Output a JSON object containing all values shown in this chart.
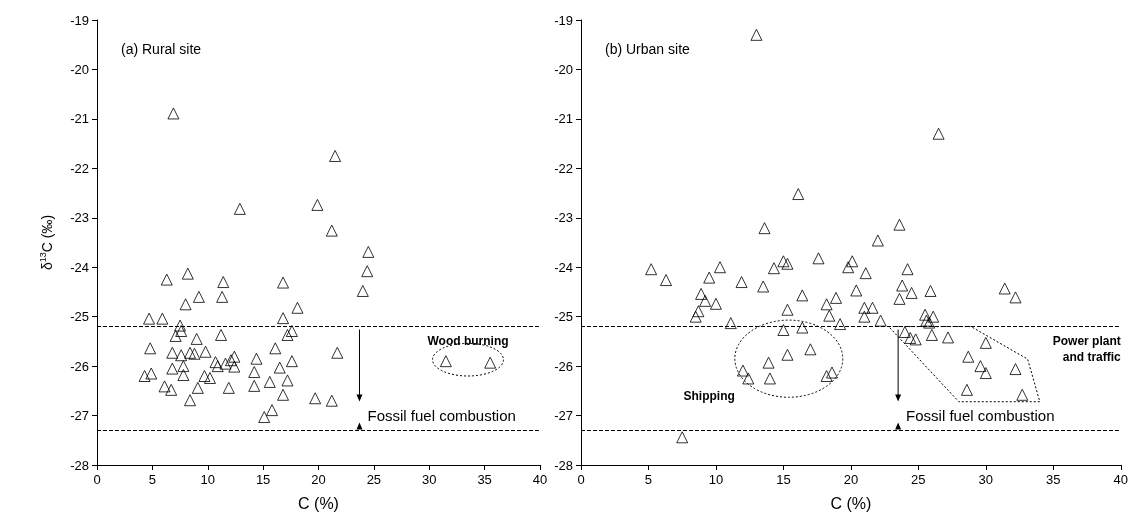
{
  "chart_data": [
    {
      "type": "scatter",
      "xlabel": "C (%)",
      "ylabel": "δ$^{13}$C (‰)",
      "xlim": [
        0,
        40
      ],
      "xticks": [
        0,
        5,
        10,
        15,
        20,
        25,
        30,
        35,
        40
      ],
      "ylim": [
        -28,
        -19
      ],
      "yticks": [
        -28,
        -27,
        -26,
        -25,
        -24,
        -23,
        -22,
        -21,
        -20,
        -19
      ],
      "grid": false,
      "marker": "triangle",
      "annotations": [
        "(a) Rural site",
        "Wood burning",
        "Fossil fuel combustion"
      ],
      "ref_lines": [
        {
          "axis": "y",
          "value": -25.2,
          "line_style": "dashed",
          "color": "#000000"
        },
        {
          "axis": "y",
          "value": -27.3,
          "line_style": "dashed",
          "color": "#000000"
        }
      ],
      "series": [
        {
          "color": "#000000",
          "x": [
            6.9,
            21.5,
            12.9,
            19.9,
            21.2,
            24.5,
            24.4,
            24.0,
            6.3,
            8.2,
            11.4,
            16.8,
            9.2,
            11.3,
            8.0,
            18.1,
            4.7,
            5.9,
            16.8,
            7.5,
            7.6,
            17.6,
            17.2,
            11.2,
            7.1,
            9.0,
            4.8,
            16.1,
            6.8,
            7.6,
            8.4,
            8.8,
            9.8,
            21.7,
            10.7,
            11.6,
            12.4,
            12.1,
            14.4,
            17.6,
            7.8,
            6.8,
            10.9,
            12.4,
            16.5,
            14.2,
            4.3,
            4.9,
            7.8,
            9.7,
            10.2,
            15.6,
            17.2,
            6.1,
            6.7,
            9.1,
            11.9,
            14.2,
            8.4,
            16.8,
            19.7,
            21.2,
            15.8,
            15.1,
            31.5,
            35.5
          ],
          "values": [
            -20.89,
            -21.75,
            -22.82,
            -22.74,
            -23.26,
            -23.69,
            -24.08,
            -24.48,
            -24.25,
            -24.13,
            -24.3,
            -24.31,
            -24.6,
            -24.6,
            -24.75,
            -24.82,
            -25.04,
            -25.04,
            -25.03,
            -25.18,
            -25.29,
            -25.29,
            -25.37,
            -25.37,
            -25.39,
            -25.45,
            -25.64,
            -25.64,
            -25.73,
            -25.78,
            -25.73,
            -25.75,
            -25.71,
            -25.73,
            -25.92,
            -25.95,
            -25.81,
            -25.88,
            -25.85,
            -25.9,
            -26.0,
            -26.05,
            -26.0,
            -26.01,
            -26.03,
            -26.12,
            -26.2,
            -26.15,
            -26.18,
            -26.2,
            -26.24,
            -26.32,
            -26.29,
            -26.41,
            -26.48,
            -26.44,
            -26.44,
            -26.4,
            -26.69,
            -26.58,
            -26.65,
            -26.7,
            -26.89,
            -27.03,
            -25.9,
            -25.93
          ]
        }
      ]
    },
    {
      "type": "scatter",
      "xlabel": "C (%)",
      "xlim": [
        0,
        40
      ],
      "xticks": [
        0,
        5,
        10,
        15,
        20,
        25,
        30,
        35,
        40
      ],
      "ylim": [
        -28,
        -19
      ],
      "yticks": [
        -28,
        -27,
        -26,
        -25,
        -24,
        -23,
        -22,
        -21,
        -20,
        -19
      ],
      "grid": false,
      "marker": "triangle",
      "annotations": [
        "(b) Urban site",
        "Shipping",
        "Power plant and traffic",
        "Fossil fuel combustion"
      ],
      "ref_lines": [
        {
          "axis": "y",
          "value": -25.2,
          "line_style": "dashed",
          "color": "#000000"
        },
        {
          "axis": "y",
          "value": -27.3,
          "line_style": "dashed",
          "color": "#000000"
        }
      ],
      "series": [
        {
          "color": "#000000",
          "x": [
            13.0,
            26.5,
            16.1,
            13.6,
            23.6,
            22.0,
            17.6,
            15.0,
            15.3,
            14.3,
            20.1,
            19.8,
            21.1,
            24.2,
            5.2,
            6.3,
            10.3,
            9.5,
            11.9,
            13.5,
            23.8,
            24.5,
            25.9,
            31.4,
            32.2,
            8.9,
            9.2,
            10.0,
            16.4,
            18.9,
            20.4,
            18.2,
            23.6,
            15.3,
            21.0,
            21.6,
            8.7,
            8.5,
            18.4,
            21.0,
            22.2,
            11.1,
            19.2,
            25.5,
            26.1,
            25.6,
            25.8,
            15.0,
            16.4,
            24.0,
            24.4,
            24.8,
            26.0,
            27.2,
            30.0,
            17.0,
            15.3,
            13.9,
            12.0,
            12.4,
            14.0,
            18.2,
            18.6,
            28.7,
            29.6,
            30.0,
            32.2,
            28.6,
            32.7,
            7.5
          ],
          "values": [
            -19.3,
            -21.3,
            -22.52,
            -23.21,
            -23.14,
            -23.46,
            -23.82,
            -23.88,
            -23.93,
            -24.02,
            -23.88,
            -24.0,
            -24.12,
            -24.04,
            -24.04,
            -24.26,
            -24.0,
            -24.21,
            -24.3,
            -24.39,
            -24.37,
            -24.52,
            -24.48,
            -24.43,
            -24.61,
            -24.54,
            -24.68,
            -24.74,
            -24.57,
            -24.62,
            -24.47,
            -24.75,
            -24.64,
            -24.86,
            -24.82,
            -24.82,
            -24.89,
            -25.0,
            -24.98,
            -25.0,
            -25.08,
            -25.13,
            -25.15,
            -24.96,
            -25.0,
            -25.08,
            -25.12,
            -25.27,
            -25.22,
            -25.31,
            -25.43,
            -25.46,
            -25.37,
            -25.42,
            -25.53,
            -25.66,
            -25.77,
            -25.93,
            -26.09,
            -26.25,
            -26.25,
            -26.2,
            -26.13,
            -25.81,
            -26.0,
            -26.14,
            -26.06,
            -26.48,
            -26.58,
            -27.44
          ]
        }
      ]
    }
  ]
}
